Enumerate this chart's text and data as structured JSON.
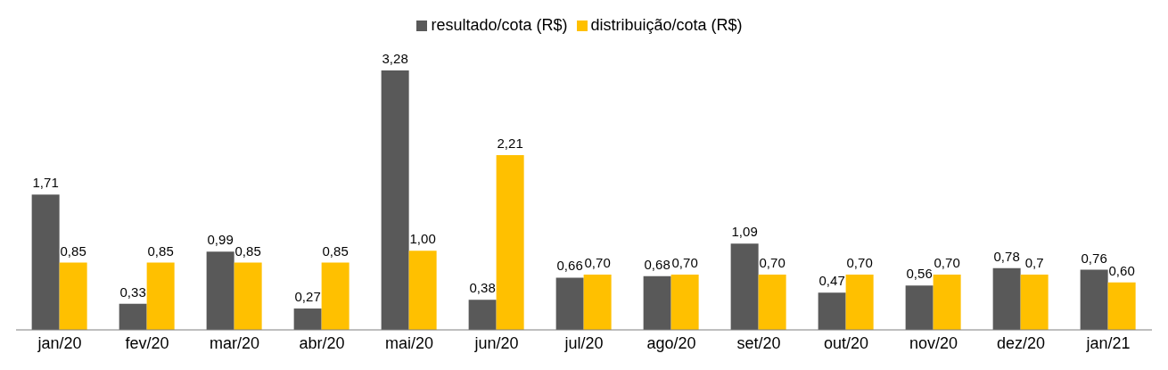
{
  "chart_data": {
    "type": "bar",
    "categories": [
      "jan/20",
      "fev/20",
      "mar/20",
      "abr/20",
      "mai/20",
      "jun/20",
      "jul/20",
      "ago/20",
      "set/20",
      "out/20",
      "nov/20",
      "dez/20",
      "jan/21"
    ],
    "series": [
      {
        "name": "resultado/cota (R$)",
        "color": "#595959",
        "values": [
          1.71,
          0.33,
          0.99,
          0.27,
          3.28,
          0.38,
          0.66,
          0.68,
          1.09,
          0.47,
          0.56,
          0.78,
          0.76
        ],
        "value_labels": [
          "1,71",
          "0,33",
          "0,99",
          "0,27",
          "3,28",
          "0,38",
          "0,66",
          "0,68",
          "1,09",
          "0,47",
          "0,56",
          "0,78",
          "0,76"
        ]
      },
      {
        "name": "distribuição/cota (R$)",
        "color": "#ffc000",
        "values": [
          0.85,
          0.85,
          0.85,
          0.85,
          1.0,
          2.21,
          0.7,
          0.7,
          0.7,
          0.7,
          0.7,
          0.7,
          0.6
        ],
        "value_labels": [
          "0,85",
          "0,85",
          "0,85",
          "0,85",
          "1,00",
          "2,21",
          "0,70",
          "0,70",
          "0,70",
          "0,70",
          "0,70",
          "0,7",
          "0,60"
        ]
      }
    ],
    "legend": "top",
    "grid": false
  }
}
